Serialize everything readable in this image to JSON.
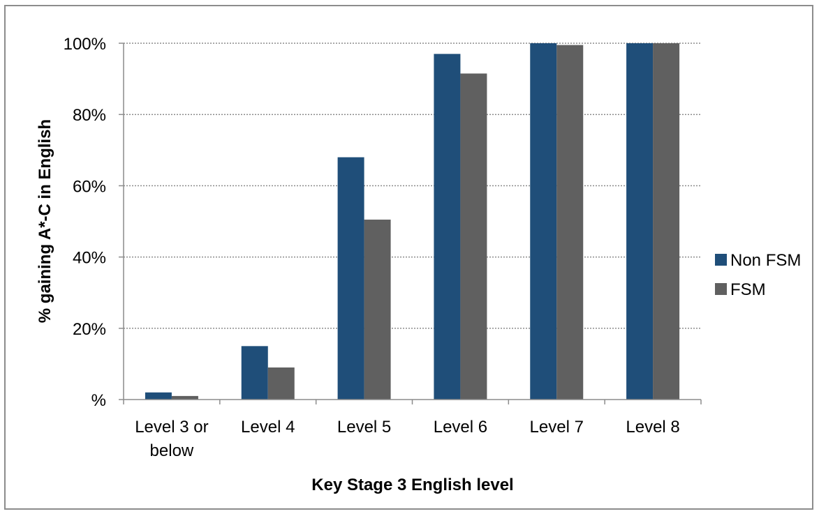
{
  "chart_data": {
    "type": "bar",
    "title": "",
    "xlabel": "Key Stage 3 English level",
    "ylabel": "% gaining A*-C in English",
    "categories": [
      [
        "Level 3 or",
        "below"
      ],
      [
        "Level 4"
      ],
      [
        "Level 5"
      ],
      [
        "Level 6"
      ],
      [
        "Level 7"
      ],
      [
        "Level 8"
      ]
    ],
    "series": [
      {
        "name": "Non FSM",
        "color": "#1f4e79",
        "values": [
          2,
          15,
          68,
          97,
          100,
          100
        ]
      },
      {
        "name": "FSM",
        "color": "#606060",
        "values": [
          1,
          9,
          50.5,
          91.5,
          99.5,
          100
        ]
      }
    ],
    "ylim": [
      0,
      100
    ],
    "yticks": [
      0,
      20,
      40,
      60,
      80,
      100
    ],
    "ytick_labels": [
      "%",
      "20%",
      "40%",
      "60%",
      "80%",
      "100%"
    ],
    "grid": "horizontal dotted",
    "legend_position": "right"
  }
}
